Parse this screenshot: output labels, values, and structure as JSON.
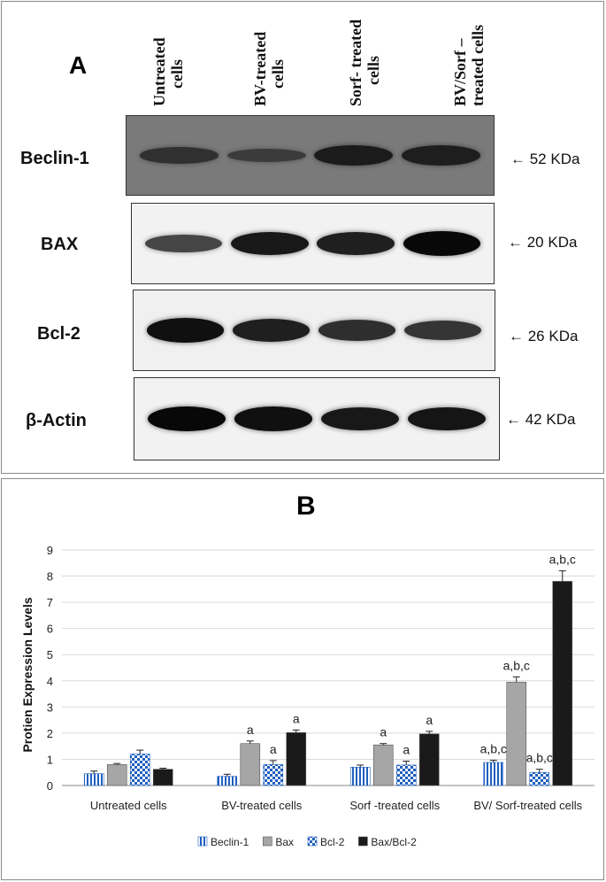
{
  "panel_a": {
    "letter": "A",
    "lanes": [
      {
        "line1": "Untreated",
        "line2": "cells"
      },
      {
        "line1": "BV-treated",
        "line2": "cells"
      },
      {
        "line1": "Sorf- treated",
        "line2": "cells"
      },
      {
        "line1": "BV/Sorf –",
        "line2": "treated cells"
      }
    ],
    "blots": [
      {
        "protein": "Beclin-1",
        "mw": "← 52 KDa",
        "band_intensity": [
          0.45,
          0.3,
          0.75,
          0.7
        ]
      },
      {
        "protein": "BAX",
        "mw": "← 20 KDa",
        "band_intensity": [
          0.6,
          0.9,
          0.85,
          1.0
        ]
      },
      {
        "protein": "Bcl-2",
        "mw": "← 26 KDa",
        "band_intensity": [
          0.95,
          0.85,
          0.75,
          0.7
        ]
      },
      {
        "protein": "β-Actin",
        "mw": "← 42 KDa",
        "band_intensity": [
          1.0,
          0.95,
          0.9,
          0.92
        ]
      }
    ]
  },
  "panel_b": {
    "letter": "B"
  },
  "chart_data": {
    "type": "bar",
    "title": "",
    "ylabel": "Protien Expression Levels",
    "xlabel": "",
    "ylim": [
      0,
      9
    ],
    "yticks": [
      0,
      1,
      2,
      3,
      4,
      5,
      6,
      7,
      8,
      9
    ],
    "grid": true,
    "legend_position": "bottom",
    "categories": [
      "Untreated cells",
      "BV-treated cells",
      "Sorf -treated cells",
      "BV/ Sorf-treated cells"
    ],
    "series": [
      {
        "name": "Beclin-1",
        "values": [
          0.45,
          0.35,
          0.7,
          0.88
        ],
        "errors": [
          0.1,
          0.08,
          0.08,
          0.08
        ],
        "color": "#1f5fbf",
        "pattern": "vstripe",
        "annotations": [
          "",
          "",
          "",
          "a,b,c"
        ]
      },
      {
        "name": "Bax",
        "values": [
          0.8,
          1.6,
          1.55,
          3.95
        ],
        "errors": [
          0.04,
          0.1,
          0.05,
          0.2
        ],
        "color": "#a6a6a6",
        "pattern": "solid",
        "annotations": [
          "",
          "a",
          "a",
          "a,b,c"
        ]
      },
      {
        "name": "Bcl-2",
        "values": [
          1.2,
          0.8,
          0.78,
          0.5
        ],
        "errors": [
          0.15,
          0.15,
          0.15,
          0.12
        ],
        "color": "#1f5fbf",
        "pattern": "checker",
        "annotations": [
          "",
          "a",
          "a",
          "a,b,c"
        ]
      },
      {
        "name": "Bax/Bcl-2",
        "values": [
          0.62,
          2.02,
          1.97,
          7.8
        ],
        "errors": [
          0.04,
          0.1,
          0.1,
          0.4
        ],
        "color": "#1a1a1a",
        "pattern": "solid",
        "annotations": [
          "",
          "a",
          "a",
          "a,b,c"
        ]
      }
    ]
  }
}
